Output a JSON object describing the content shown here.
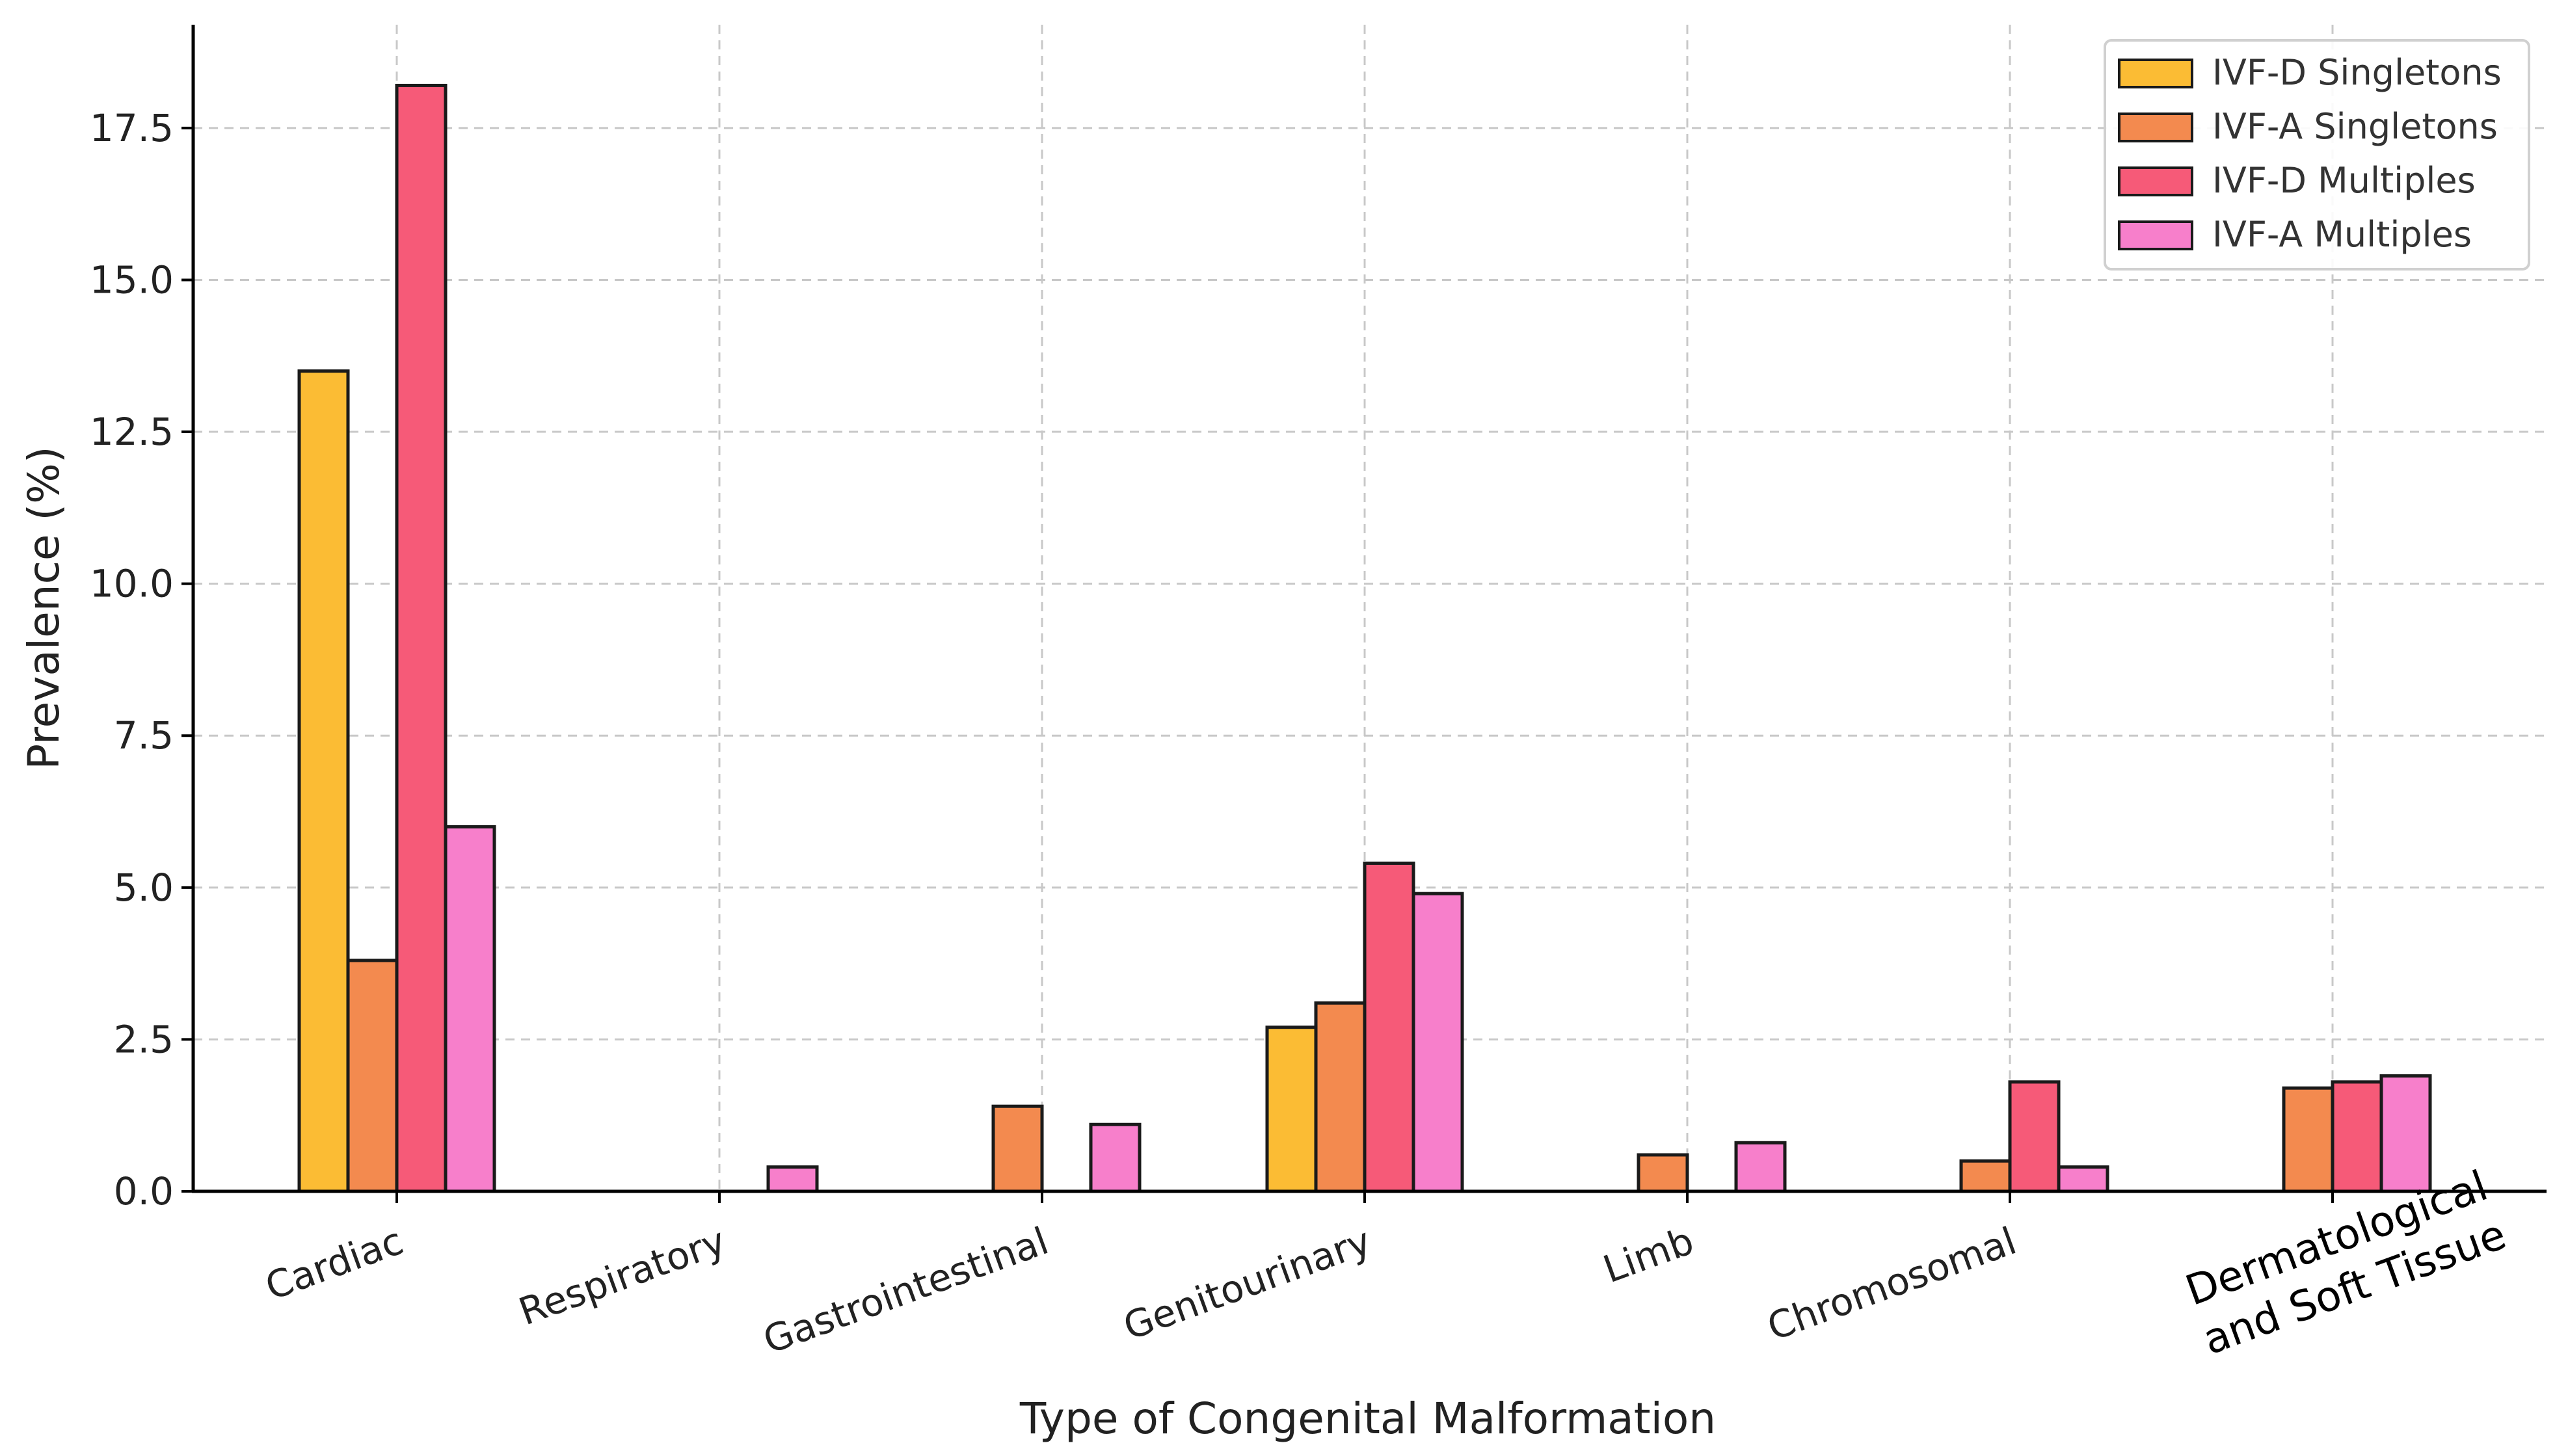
{
  "chart_data": {
    "type": "bar",
    "title": "",
    "xlabel": "Type of Congenital Malformation",
    "ylabel": "Prevalence (%)",
    "ylim": [
      0,
      19.2
    ],
    "yticks": [
      "0.0",
      "2.5",
      "5.0",
      "7.5",
      "10.0",
      "12.5",
      "15.0",
      "17.5"
    ],
    "grid": true,
    "legend_position": "top-right",
    "categories": [
      "Cardiac",
      "Respiratory",
      "Gastrointestinal",
      "Genitourinary",
      "Limb",
      "Chromosomal",
      "Dermatological and Soft Tissue"
    ],
    "category_lines": [
      [
        "Cardiac"
      ],
      [
        "Respiratory"
      ],
      [
        "Gastrointestinal"
      ],
      [
        "Genitourinary"
      ],
      [
        "Limb"
      ],
      [
        "Chromosomal"
      ],
      [
        "Dermatological",
        "and Soft Tissue"
      ]
    ],
    "series": [
      {
        "name": "IVF-D Singletons",
        "color": "#FBBC34",
        "values": [
          13.5,
          0.0,
          0.0,
          2.7,
          0.0,
          0.0,
          0.0
        ]
      },
      {
        "name": "IVF-A Singletons",
        "color": "#F38A4F",
        "values": [
          3.8,
          0.0,
          1.4,
          3.1,
          0.6,
          0.5,
          1.7
        ]
      },
      {
        "name": "IVF-D Multiples",
        "color": "#F65A78",
        "values": [
          18.2,
          0.0,
          0.0,
          5.4,
          0.0,
          1.8,
          1.8
        ]
      },
      {
        "name": "IVF-A Multiples",
        "color": "#F77FCB",
        "values": [
          6.0,
          0.4,
          1.1,
          4.9,
          0.8,
          0.4,
          1.9
        ]
      }
    ]
  }
}
